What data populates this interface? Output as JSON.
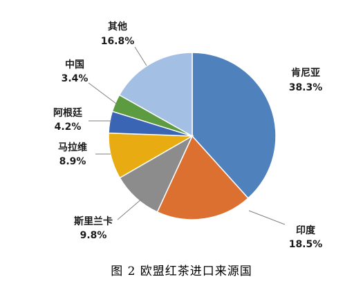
{
  "chart_data": {
    "type": "pie",
    "title": "",
    "slices": [
      {
        "label": "肯尼亚",
        "value": 38.3,
        "display": "38.3%",
        "color": "#4f81bd"
      },
      {
        "label": "印度",
        "value": 18.5,
        "display": "18.5%",
        "color": "#dc7031"
      },
      {
        "label": "斯里兰卡",
        "value": 9.8,
        "display": "9.8%",
        "color": "#8c8c8c"
      },
      {
        "label": "马拉维",
        "value": 8.9,
        "display": "8.9%",
        "color": "#e8ac12"
      },
      {
        "label": "阿根廷",
        "value": 4.2,
        "display": "4.2%",
        "color": "#3a64b4"
      },
      {
        "label": "中国",
        "value": 3.4,
        "display": "3.4%",
        "color": "#5d9b40"
      },
      {
        "label": "其他",
        "value": 16.8,
        "display": "16.8%",
        "color": "#a3bfe3"
      }
    ],
    "start_angle": "12 o'clock",
    "direction": "clockwise",
    "legend": "none (labels next to slices)"
  },
  "caption": "图 2 欧盟红茶进口来源国"
}
